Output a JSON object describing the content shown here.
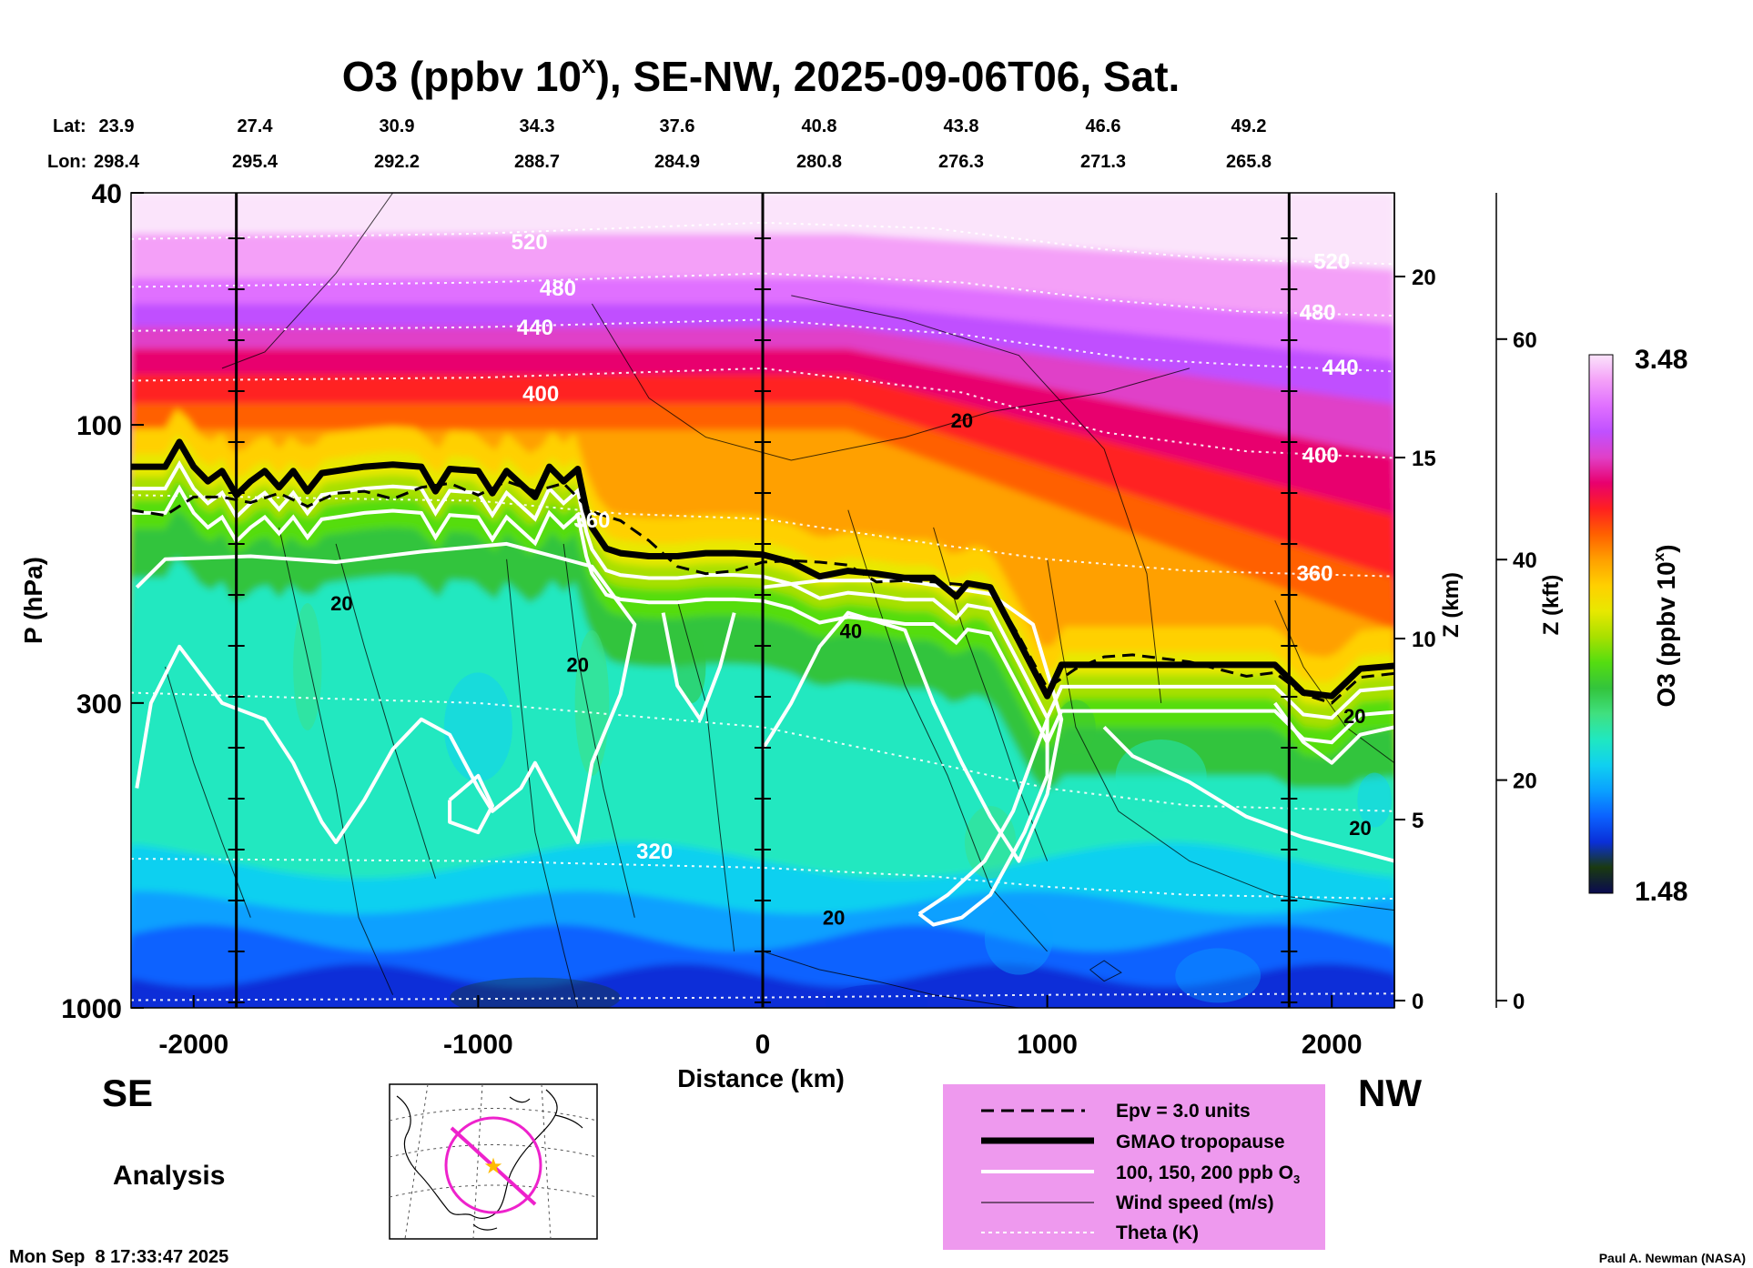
{
  "chart_data": {
    "type": "heatmap",
    "title_prefix": "O3 (ppbv 10",
    "title_exp": "x",
    "title_suffix": "), SE-NW, 2025-09-06T06, Sat.",
    "lat_label": "Lat:",
    "lon_label": "Lon:",
    "lat_values": [
      "23.9",
      "27.4",
      "30.9",
      "34.3",
      "37.6",
      "40.8",
      "43.8",
      "46.6",
      "49.2"
    ],
    "lon_values": [
      "298.4",
      "295.4",
      "292.2",
      "288.7",
      "284.9",
      "280.8",
      "276.3",
      "271.3",
      "265.8"
    ],
    "xlabel": "Distance (km)",
    "xlim": [
      -2220,
      2220
    ],
    "xticks": [
      -2000,
      -1000,
      0,
      1000,
      2000
    ],
    "xtick_labels": [
      "-2000",
      "-1000",
      "0",
      "1000",
      "2000"
    ],
    "ylabel": "P (hPa)",
    "ylim": [
      1000,
      40
    ],
    "yticks": [
      40,
      100,
      300,
      1000
    ],
    "ytick_labels": [
      "40",
      "100",
      "300",
      "1000"
    ],
    "z_km_label": "Z (km)",
    "z_km_ticks": [
      0,
      5,
      10,
      15,
      20
    ],
    "z_km_tick_labels": [
      "0",
      "5",
      "10",
      "15",
      "20"
    ],
    "z_kft_label": "Z (kft)",
    "z_kft_ticks": [
      0,
      20,
      40,
      60
    ],
    "z_kft_tick_labels": [
      "0",
      "20",
      "40",
      "60"
    ],
    "colorbar_label_prefix": "O3 (ppbv 10",
    "colorbar_label_exp": "x",
    "colorbar_label_suffix": ")",
    "colorbar_range": [
      1.48,
      3.48
    ],
    "colorbar_min_label": "1.48",
    "colorbar_max_label": "3.48",
    "theta_labels": [
      {
        "text": "520",
        "x": -820,
        "p": 50
      },
      {
        "text": "480",
        "x": -720,
        "p": 60
      },
      {
        "text": "440",
        "x": -800,
        "p": 70
      },
      {
        "text": "400",
        "x": -780,
        "p": 91
      },
      {
        "text": "360",
        "x": -600,
        "p": 150
      },
      {
        "text": "320",
        "x": -380,
        "p": 555
      },
      {
        "text": "520",
        "x": 2000,
        "p": 54
      },
      {
        "text": "480",
        "x": 1950,
        "p": 66
      },
      {
        "text": "440",
        "x": 2030,
        "p": 82
      },
      {
        "text": "400",
        "x": 1960,
        "p": 116
      },
      {
        "text": "360",
        "x": 1940,
        "p": 185
      }
    ],
    "wind_labels": [
      {
        "text": "20",
        "x": 700,
        "p": 101
      },
      {
        "text": "20",
        "x": -1480,
        "p": 208
      },
      {
        "text": "20",
        "x": -650,
        "p": 265
      },
      {
        "text": "40",
        "x": 310,
        "p": 232
      },
      {
        "text": "20",
        "x": 250,
        "p": 720
      },
      {
        "text": "20",
        "x": 2100,
        "p": 505
      },
      {
        "text": "20",
        "x": 2080,
        "p": 325
      }
    ],
    "tropopause_p": [
      [
        -2220,
        118
      ],
      [
        -2100,
        118
      ],
      [
        -2050,
        107
      ],
      [
        -2000,
        118
      ],
      [
        -1950,
        125
      ],
      [
        -1900,
        120
      ],
      [
        -1850,
        132
      ],
      [
        -1800,
        125
      ],
      [
        -1750,
        120
      ],
      [
        -1700,
        128
      ],
      [
        -1650,
        120
      ],
      [
        -1600,
        130
      ],
      [
        -1550,
        121
      ],
      [
        -1500,
        120
      ],
      [
        -1400,
        118
      ],
      [
        -1300,
        117
      ],
      [
        -1200,
        118
      ],
      [
        -1150,
        130
      ],
      [
        -1100,
        119
      ],
      [
        -1000,
        120
      ],
      [
        -950,
        131
      ],
      [
        -900,
        120
      ],
      [
        -800,
        133
      ],
      [
        -750,
        118
      ],
      [
        -700,
        125
      ],
      [
        -650,
        119
      ],
      [
        -620,
        140
      ],
      [
        -600,
        150
      ],
      [
        -550,
        163
      ],
      [
        -500,
        166
      ],
      [
        -400,
        168
      ],
      [
        -300,
        168
      ],
      [
        -200,
        166
      ],
      [
        -100,
        166
      ],
      [
        0,
        167
      ],
      [
        100,
        172
      ],
      [
        200,
        182
      ],
      [
        300,
        178
      ],
      [
        400,
        180
      ],
      [
        500,
        183
      ],
      [
        600,
        183
      ],
      [
        680,
        197
      ],
      [
        720,
        187
      ],
      [
        800,
        190
      ],
      [
        900,
        235
      ],
      [
        1000,
        292
      ],
      [
        1050,
        258
      ],
      [
        1200,
        258
      ],
      [
        1500,
        258
      ],
      [
        1800,
        258
      ],
      [
        1900,
        288
      ],
      [
        2000,
        292
      ],
      [
        2100,
        262
      ],
      [
        2220,
        259
      ]
    ],
    "epv_p": [
      [
        -2220,
        140
      ],
      [
        -2100,
        143
      ],
      [
        -2000,
        133
      ],
      [
        -1900,
        133
      ],
      [
        -1800,
        136
      ],
      [
        -1700,
        131
      ],
      [
        -1600,
        138
      ],
      [
        -1500,
        131
      ],
      [
        -1400,
        130
      ],
      [
        -1300,
        134
      ],
      [
        -1200,
        128
      ],
      [
        -1100,
        126
      ],
      [
        -1000,
        132
      ],
      [
        -900,
        125
      ],
      [
        -800,
        130
      ],
      [
        -700,
        126
      ],
      [
        -600,
        141
      ],
      [
        -500,
        146
      ],
      [
        -400,
        158
      ],
      [
        -300,
        175
      ],
      [
        -200,
        180
      ],
      [
        -100,
        178
      ],
      [
        0,
        172
      ],
      [
        100,
        171
      ],
      [
        200,
        172
      ],
      [
        300,
        174
      ],
      [
        400,
        186
      ],
      [
        500,
        185
      ],
      [
        600,
        186
      ],
      [
        700,
        188
      ],
      [
        800,
        190
      ],
      [
        900,
        230
      ],
      [
        1000,
        283
      ],
      [
        1100,
        262
      ],
      [
        1200,
        250
      ],
      [
        1300,
        248
      ],
      [
        1500,
        255
      ],
      [
        1700,
        270
      ],
      [
        1800,
        266
      ],
      [
        1900,
        290
      ],
      [
        2000,
        300
      ],
      [
        2100,
        271
      ],
      [
        2220,
        267
      ]
    ],
    "theta_p": [
      [
        [
          -2220,
          48
        ],
        [
          -1000,
          47
        ],
        [
          0,
          45
        ],
        [
          600,
          46
        ],
        [
          1200,
          50
        ],
        [
          1600,
          52
        ],
        [
          2220,
          53
        ]
      ],
      [
        [
          -2220,
          58
        ],
        [
          -1000,
          57
        ],
        [
          0,
          55
        ],
        [
          700,
          57
        ],
        [
          1200,
          61
        ],
        [
          1700,
          64
        ],
        [
          2220,
          65
        ]
      ],
      [
        [
          -2220,
          69
        ],
        [
          -1000,
          68
        ],
        [
          0,
          66
        ],
        [
          700,
          70
        ],
        [
          1300,
          77
        ],
        [
          1700,
          79
        ],
        [
          2220,
          81
        ]
      ],
      [
        [
          -2220,
          84
        ],
        [
          -1000,
          83
        ],
        [
          0,
          80
        ],
        [
          700,
          88
        ],
        [
          1200,
          103
        ],
        [
          1700,
          111
        ],
        [
          2220,
          114
        ]
      ],
      [
        [
          -2220,
          132
        ],
        [
          -1000,
          135
        ],
        [
          -500,
          142
        ],
        [
          0,
          145
        ],
        [
          600,
          160
        ],
        [
          1000,
          170
        ],
        [
          1500,
          178
        ],
        [
          2220,
          182
        ]
      ],
      [
        [
          -2220,
          288
        ],
        [
          -1000,
          300
        ],
        [
          0,
          330
        ],
        [
          600,
          380
        ],
        [
          1000,
          420
        ],
        [
          1500,
          450
        ],
        [
          2220,
          460
        ]
      ],
      [
        [
          -2220,
          555
        ],
        [
          -1000,
          560
        ],
        [
          0,
          575
        ],
        [
          600,
          595
        ],
        [
          1000,
          620
        ],
        [
          1500,
          640
        ],
        [
          2220,
          650
        ]
      ],
      [
        [
          -2220,
          970
        ],
        [
          -1000,
          965
        ],
        [
          0,
          960
        ],
        [
          1000,
          950
        ],
        [
          2220,
          945
        ]
      ]
    ],
    "legend": {
      "epv": "Epv = 3.0 units",
      "tropopause": "GMAO tropopause",
      "ozone_prefix": "100, 150, 200 ppb O",
      "ozone_sub": "3",
      "wind": "Wind speed (m/s)",
      "theta": "Theta (K)"
    },
    "left_end_label": "SE",
    "right_end_label": "NW",
    "mode_label": "Analysis",
    "timestamp": "Mon Sep  8 17:33:47 2025",
    "credit": "Paul A. Newman (NASA)"
  },
  "colors": {
    "legend_bg": "#ee99ee",
    "map_track": "#ee22cc",
    "map_star": "#ffbb00",
    "colormap": [
      "#0a0a50",
      "#1a3a10",
      "#0a2fd8",
      "#0b62ff",
      "#0aa0ff",
      "#10d0f0",
      "#20e8c0",
      "#40e080",
      "#33c43c",
      "#55dd10",
      "#a8e000",
      "#e8e800",
      "#ffd000",
      "#ffa000",
      "#ff6000",
      "#ff2020",
      "#e8006e",
      "#e040c8",
      "#c050ff",
      "#e070ff",
      "#f4a0f8",
      "#fbe4fb"
    ]
  }
}
